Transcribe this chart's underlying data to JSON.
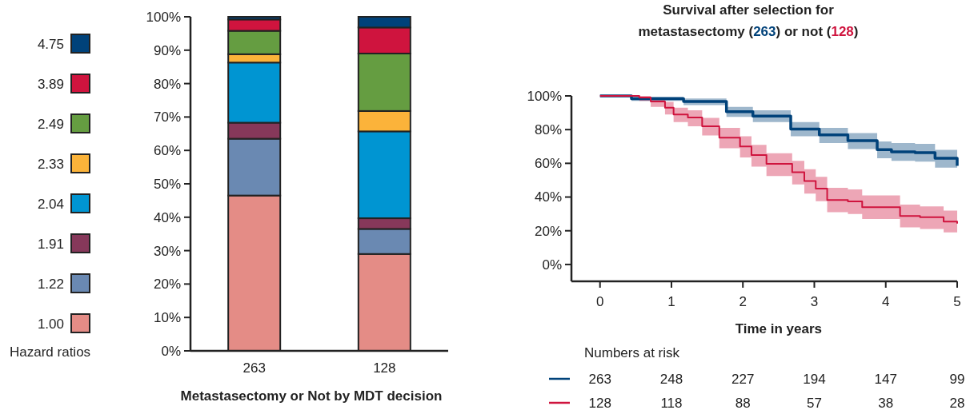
{
  "chart_data": [
    {
      "type": "bar",
      "stacked": true,
      "categories": [
        "263",
        "128"
      ],
      "xlabel": "Metastasectomy or Not by MDT decision",
      "legend_title": "Hazard ratios",
      "legend": "left",
      "ylim": [
        0,
        100
      ],
      "yticks": [
        {
          "value": 0,
          "label": "0%"
        },
        {
          "value": 10,
          "label": "10%"
        },
        {
          "value": 20,
          "label": "20%"
        },
        {
          "value": 30,
          "label": "30%"
        },
        {
          "value": 40,
          "label": "40%"
        },
        {
          "value": 50,
          "label": "50%"
        },
        {
          "value": 60,
          "label": "60%"
        },
        {
          "value": 70,
          "label": "70%"
        },
        {
          "value": 80,
          "label": "80%"
        },
        {
          "value": 90,
          "label": "90%"
        },
        {
          "value": 100,
          "label": "100%"
        }
      ],
      "series": [
        {
          "name": "1.00",
          "color": "#e48c86",
          "values": [
            46.5,
            29
          ]
        },
        {
          "name": "1.22",
          "color": "#6a89b2",
          "values": [
            17,
            7.5
          ]
        },
        {
          "name": "1.91",
          "color": "#86385a",
          "values": [
            4.8,
            3.2
          ]
        },
        {
          "name": "2.04",
          "color": "#0095d2",
          "values": [
            18,
            26
          ]
        },
        {
          "name": "2.33",
          "color": "#fbb33a",
          "values": [
            2.5,
            6.1
          ]
        },
        {
          "name": "2.49",
          "color": "#659d41",
          "values": [
            7,
            17.2
          ]
        },
        {
          "name": "3.89",
          "color": "#cf143e",
          "values": [
            3.4,
            7.8
          ]
        },
        {
          "name": "4.75",
          "color": "#00427a",
          "values": [
            0.8,
            3.2
          ]
        }
      ]
    },
    {
      "type": "step",
      "title": "Survival after selection for metastasectomy (263) or not (128)",
      "xlabel": "Time in years",
      "legend": "bottom",
      "xlim": [
        -0.4,
        5
      ],
      "xticks": [
        0,
        1,
        2,
        3,
        4,
        5
      ],
      "ylim": [
        -10,
        100
      ],
      "yticks": [
        {
          "value": 0,
          "label": "0%"
        },
        {
          "value": 20,
          "label": "20%"
        },
        {
          "value": 40,
          "label": "40%"
        },
        {
          "value": 60,
          "label": "60%"
        },
        {
          "value": 80,
          "label": "80%"
        },
        {
          "value": 100,
          "label": "100%"
        }
      ],
      "annotations": [
        "Numbers at risk",
        "248",
        "227",
        "194",
        "147",
        "99",
        "118",
        "88",
        "57",
        "38",
        "28"
      ],
      "series": [
        {
          "name": "263",
          "color": "#00427a",
          "x": [
            0,
            0.44,
            1.17,
            1.77,
            2.14,
            2.67,
            3.07,
            3.47,
            3.88,
            4.08,
            4.41,
            4.69,
            5
          ],
          "values": [
            100,
            98.3,
            96.7,
            90.6,
            88,
            80.3,
            76.9,
            73.4,
            68.1,
            66.8,
            66.3,
            63,
            58.5
          ],
          "lower": [
            100,
            97,
            94.5,
            87.5,
            84.5,
            76,
            72,
            68.5,
            63,
            61.5,
            61,
            57.5,
            53
          ],
          "upper": [
            100,
            99.5,
            98.5,
            93.5,
            91.5,
            84.5,
            81,
            78,
            73,
            72,
            71.5,
            68,
            64.5
          ]
        },
        {
          "name": "128",
          "color": "#cf143e",
          "x": [
            0,
            0.55,
            0.71,
            0.91,
            1.03,
            1.23,
            1.43,
            1.67,
            1.96,
            2.12,
            2.33,
            2.69,
            2.86,
            3.02,
            3.18,
            3.47,
            3.67,
            4.2,
            4.48,
            4.81,
            5
          ],
          "values": [
            100,
            99,
            96.7,
            93,
            89,
            87.2,
            82,
            75.2,
            70,
            64.9,
            59.7,
            54.7,
            49.5,
            45,
            38.2,
            37.4,
            34,
            28.8,
            28,
            25.5,
            24.2
          ],
          "lower": [
            100,
            97,
            93.5,
            89,
            84.5,
            82,
            76.5,
            69,
            63.5,
            58,
            52.5,
            47.5,
            42,
            37.5,
            31,
            30,
            27,
            22,
            21,
            19,
            17.7
          ],
          "upper": [
            100,
            100,
            99,
            96.5,
            93,
            91.5,
            87,
            81,
            76,
            71,
            66,
            61.5,
            56.5,
            52,
            45.5,
            44.5,
            41,
            35.5,
            34.5,
            32,
            31
          ]
        }
      ]
    }
  ]
}
